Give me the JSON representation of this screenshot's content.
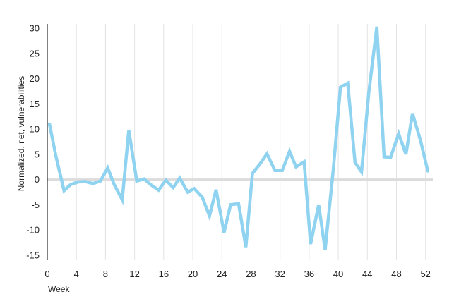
{
  "chart_data": {
    "type": "line",
    "title": "",
    "xlabel": "Week",
    "ylabel": "Normalized, net, vulnerabilities",
    "xlim": [
      0,
      53
    ],
    "ylim": [
      -16,
      30
    ],
    "x_ticks": [
      0,
      4,
      8,
      12,
      16,
      20,
      24,
      28,
      32,
      36,
      40,
      44,
      48,
      52
    ],
    "y_ticks": [
      30,
      25,
      20,
      15,
      10,
      5,
      0,
      -5,
      -10,
      -15
    ],
    "grid": {
      "vertical": true,
      "horizontal": false,
      "zero_line": true
    },
    "colors": {
      "series": "#8fd3f0",
      "grid": "#e3e3e3",
      "zero_line": "#dcdcdc",
      "axis": "#000000"
    },
    "series": [
      {
        "x": [
          0.3,
          1.2,
          2.3,
          3.2,
          4.2,
          5.2,
          6.3,
          7.3,
          8.3,
          9.2,
          10.3,
          11.2,
          12.3,
          13.3,
          14.2,
          15.3,
          16.3,
          17.3,
          18.2,
          19.3,
          20.2,
          21.3,
          22.3,
          23.2,
          24.3,
          25.2,
          26.3,
          27.3,
          28.2,
          29.3,
          30.2,
          31.3,
          32.3,
          33.3,
          34.2,
          35.3,
          36.2,
          37.3,
          38.2,
          39.3,
          40.3,
          41.3,
          42.3,
          43.2,
          44.2,
          45.3,
          46.3,
          47.2,
          48.3,
          49.3,
          50.2,
          51.3,
          52.3
        ],
        "values": [
          11,
          4.5,
          -2.2,
          -1,
          -0.5,
          -0.4,
          -0.8,
          -0.3,
          2.3,
          -1,
          -4,
          9.8,
          -0.3,
          0.1,
          -1,
          -2.1,
          -0.1,
          -1.6,
          0.3,
          -2.5,
          -1.8,
          -3.5,
          -7.2,
          -2,
          -10.5,
          -5,
          -4.8,
          -13.4,
          1.2,
          3.2,
          5.1,
          1.8,
          1.8,
          5.6,
          2.5,
          3.5,
          -12.8,
          -5,
          -13.9,
          1.8,
          18.3,
          19.1,
          3.4,
          1.5,
          17.2,
          30.3,
          4.5,
          4.4,
          9.1,
          5,
          13.1,
          7.8,
          1.7
        ]
      }
    ]
  }
}
